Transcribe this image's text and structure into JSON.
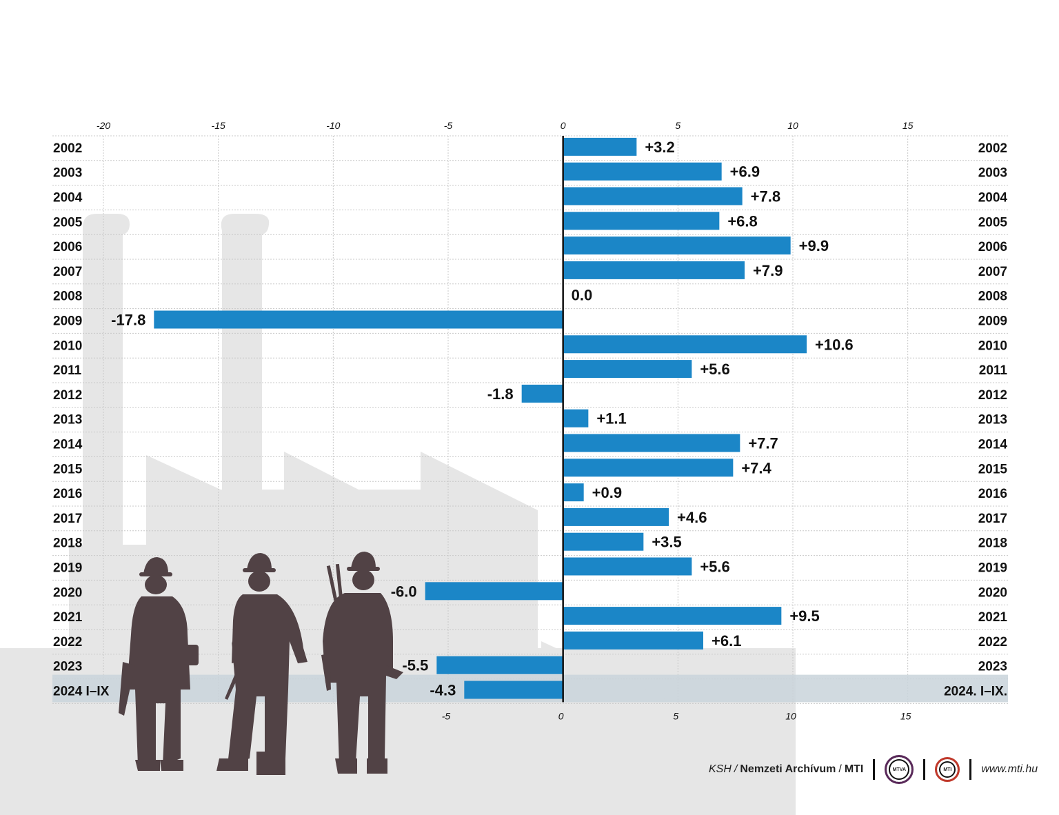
{
  "chart_data": {
    "type": "bar",
    "orientation": "horizontal",
    "categories": [
      "2002",
      "2003",
      "2004",
      "2005",
      "2006",
      "2007",
      "2008",
      "2009",
      "2010",
      "2011",
      "2012",
      "2013",
      "2014",
      "2015",
      "2016",
      "2017",
      "2018",
      "2019",
      "2020",
      "2021",
      "2022",
      "2023",
      "2024"
    ],
    "left_labels": [
      "2002",
      "2003",
      "2004",
      "2005",
      "2006",
      "2007",
      "2008",
      "2009",
      "2010",
      "2011",
      "2012",
      "2013",
      "2014",
      "2015",
      "2016",
      "2017",
      "2018",
      "2019",
      "2020",
      "2021",
      "2022",
      "2023",
      "2024  I–IX"
    ],
    "right_labels": [
      "2002",
      "2003",
      "2004",
      "2005",
      "2006",
      "2007",
      "2008",
      "2009",
      "2010",
      "2011",
      "2012",
      "2013",
      "2014",
      "2015",
      "2016",
      "2017",
      "2018",
      "2019",
      "2020",
      "2021",
      "2022",
      "2023",
      "2024. I–IX."
    ],
    "values": [
      3.2,
      6.9,
      7.8,
      6.8,
      9.9,
      7.9,
      0.0,
      -17.8,
      10.6,
      5.6,
      -1.8,
      1.1,
      7.7,
      7.4,
      0.9,
      4.6,
      3.5,
      5.6,
      -6.0,
      9.5,
      6.1,
      -5.5,
      -4.3
    ],
    "value_labels": [
      "+3.2",
      "+6.9",
      "+7.8",
      "+6.8",
      "+9.9",
      "+7.9",
      "0.0",
      "-17.8",
      "+10.6",
      "+5.6",
      "-1.8",
      "+1.1",
      "+7.7",
      "+7.4",
      "+0.9",
      "+4.6",
      "+3.5",
      "+5.6",
      "-6.0",
      "+9.5",
      "+6.1",
      "-5.5",
      "-4.3"
    ],
    "xlim": [
      -24.5,
      17.2
    ],
    "top_ticks": [
      "-20",
      "-15",
      "-10",
      "-5",
      "0",
      "5",
      "10",
      "15"
    ],
    "top_tick_values": [
      -20,
      -15,
      -10,
      -5,
      0,
      5,
      10,
      15
    ],
    "bottom_ticks": [
      "-5",
      "0",
      "5",
      "10",
      "15"
    ],
    "bottom_tick_values": [
      -5,
      0,
      5,
      10,
      15
    ],
    "highlighted_category": "2024",
    "title": "",
    "xlabel": "",
    "ylabel": "",
    "grid": true,
    "colors": {
      "bar": "#1b86c7",
      "text": "#111111",
      "grid": "#c8c8c8",
      "highlight_band": "#c9d4db",
      "background_shape": "#e6e6e6",
      "silhouette": "#514245"
    }
  },
  "footer": {
    "source_1": "KSH",
    "slash_1": "/",
    "source_2": "Nemzeti Archívum",
    "slash_2": "/",
    "source_3": "MTI",
    "logo_mtva": "MTVA",
    "logo_mti": "MTI",
    "website": "www.mti.hu"
  }
}
